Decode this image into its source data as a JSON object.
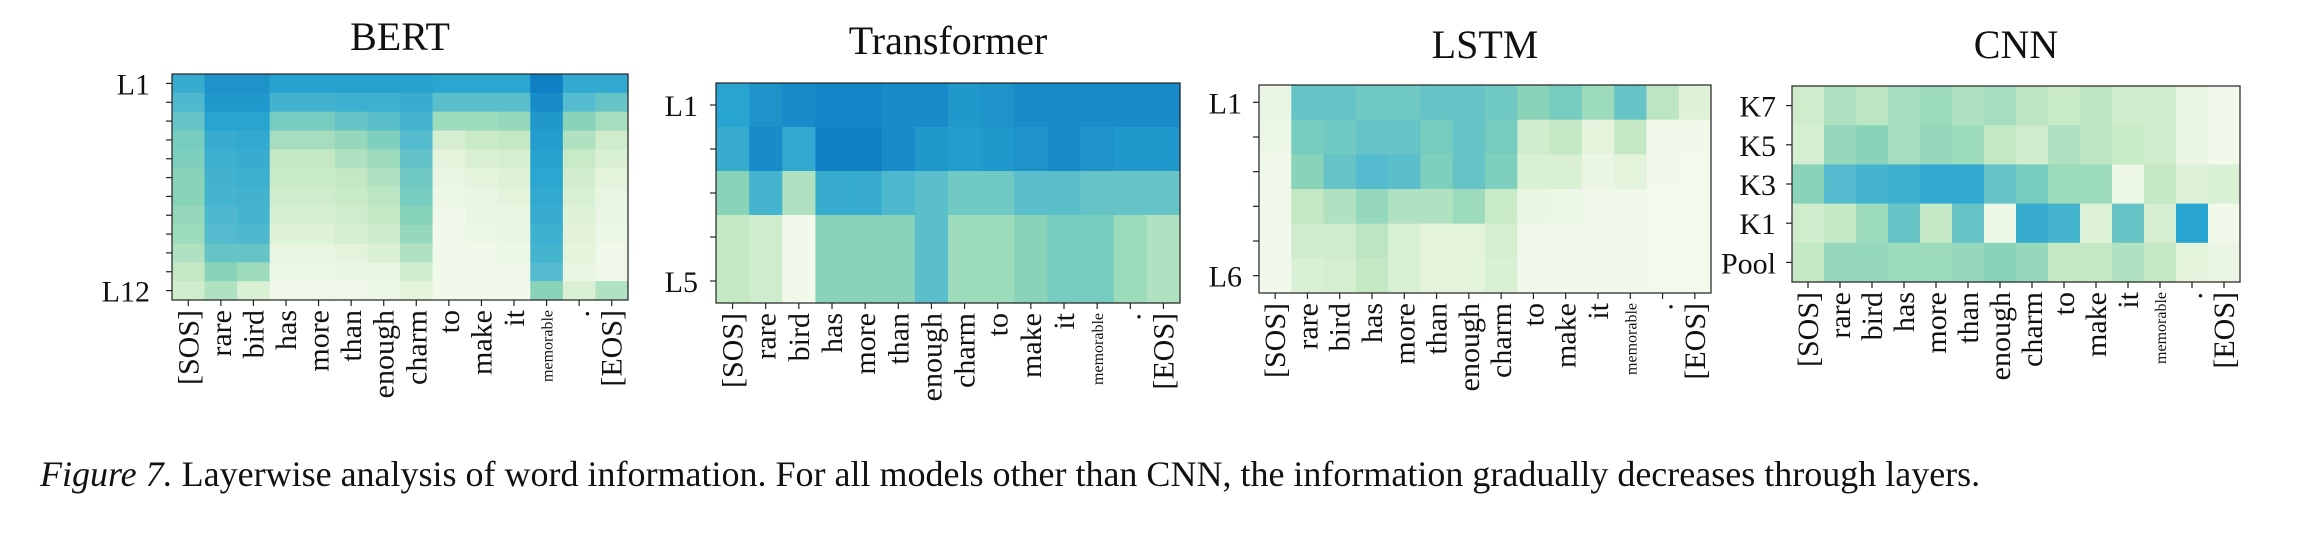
{
  "chart_data": [
    {
      "type": "heatmap",
      "title": "BERT",
      "x_tokens": [
        "[SOS]",
        "rare",
        "bird",
        "has",
        "more",
        "than",
        "enough",
        "charm",
        "to",
        "make",
        "it",
        "memorable",
        ".",
        "[EOS]"
      ],
      "row_labels": [
        "L1",
        "",
        "",
        "",
        "",
        "",
        "",
        "",
        "",
        "",
        "",
        "L12"
      ],
      "value_range": [
        0,
        1
      ],
      "values": [
        [
          0.7,
          0.82,
          0.82,
          0.76,
          0.76,
          0.76,
          0.76,
          0.76,
          0.74,
          0.74,
          0.74,
          0.9,
          0.72,
          0.72
        ],
        [
          0.62,
          0.8,
          0.8,
          0.66,
          0.66,
          0.68,
          0.68,
          0.7,
          0.58,
          0.58,
          0.58,
          0.85,
          0.6,
          0.55
        ],
        [
          0.55,
          0.75,
          0.75,
          0.5,
          0.5,
          0.55,
          0.58,
          0.65,
          0.4,
          0.4,
          0.42,
          0.8,
          0.45,
          0.38
        ],
        [
          0.5,
          0.7,
          0.72,
          0.38,
          0.38,
          0.42,
          0.48,
          0.6,
          0.22,
          0.28,
          0.3,
          0.78,
          0.35,
          0.25
        ],
        [
          0.48,
          0.68,
          0.7,
          0.3,
          0.3,
          0.35,
          0.4,
          0.56,
          0.15,
          0.2,
          0.22,
          0.76,
          0.28,
          0.2
        ],
        [
          0.45,
          0.66,
          0.68,
          0.28,
          0.28,
          0.3,
          0.35,
          0.52,
          0.1,
          0.15,
          0.18,
          0.74,
          0.24,
          0.15
        ],
        [
          0.45,
          0.65,
          0.66,
          0.25,
          0.25,
          0.28,
          0.32,
          0.5,
          0.08,
          0.12,
          0.15,
          0.72,
          0.2,
          0.12
        ],
        [
          0.42,
          0.62,
          0.65,
          0.22,
          0.22,
          0.25,
          0.3,
          0.46,
          0.06,
          0.1,
          0.12,
          0.7,
          0.18,
          0.1
        ],
        [
          0.4,
          0.6,
          0.62,
          0.18,
          0.18,
          0.22,
          0.26,
          0.42,
          0.05,
          0.08,
          0.1,
          0.68,
          0.16,
          0.08
        ],
        [
          0.35,
          0.55,
          0.55,
          0.12,
          0.12,
          0.15,
          0.2,
          0.35,
          0.04,
          0.06,
          0.08,
          0.65,
          0.14,
          0.06
        ],
        [
          0.3,
          0.45,
          0.4,
          0.08,
          0.08,
          0.1,
          0.12,
          0.25,
          0.04,
          0.05,
          0.06,
          0.6,
          0.12,
          0.06
        ],
        [
          0.25,
          0.35,
          0.2,
          0.06,
          0.06,
          0.06,
          0.08,
          0.15,
          0.04,
          0.04,
          0.05,
          0.45,
          0.2,
          0.35
        ]
      ]
    },
    {
      "type": "heatmap",
      "title": "Transformer",
      "x_tokens": [
        "[SOS]",
        "rare",
        "bird",
        "has",
        "more",
        "than",
        "enough",
        "charm",
        "to",
        "make",
        "it",
        "memorable",
        ".",
        "[EOS]"
      ],
      "row_labels": [
        "L1",
        "",
        "",
        "",
        "L5"
      ],
      "value_range": [
        0,
        1
      ],
      "values": [
        [
          0.75,
          0.82,
          0.85,
          0.88,
          0.88,
          0.85,
          0.85,
          0.8,
          0.82,
          0.85,
          0.85,
          0.85,
          0.85,
          0.85
        ],
        [
          0.7,
          0.85,
          0.72,
          0.9,
          0.9,
          0.85,
          0.8,
          0.78,
          0.8,
          0.82,
          0.85,
          0.82,
          0.8,
          0.8
        ],
        [
          0.45,
          0.65,
          0.35,
          0.7,
          0.7,
          0.62,
          0.58,
          0.52,
          0.52,
          0.58,
          0.58,
          0.55,
          0.55,
          0.55
        ],
        [
          0.3,
          0.25,
          0.05,
          0.45,
          0.45,
          0.45,
          0.58,
          0.4,
          0.4,
          0.45,
          0.5,
          0.5,
          0.4,
          0.35
        ],
        [
          0.3,
          0.25,
          0.05,
          0.45,
          0.45,
          0.45,
          0.58,
          0.4,
          0.4,
          0.45,
          0.5,
          0.5,
          0.4,
          0.35
        ]
      ]
    },
    {
      "type": "heatmap",
      "title": "LSTM",
      "x_tokens": [
        "[SOS]",
        "rare",
        "bird",
        "has",
        "more",
        "than",
        "enough",
        "charm",
        "to",
        "make",
        "it",
        "memorable",
        ".",
        "[EOS]"
      ],
      "row_labels": [
        "L1",
        "",
        "",
        "",
        "",
        "L6"
      ],
      "value_range": [
        0,
        1
      ],
      "values": [
        [
          0.1,
          0.55,
          0.55,
          0.52,
          0.52,
          0.55,
          0.55,
          0.52,
          0.45,
          0.5,
          0.4,
          0.55,
          0.32,
          0.18
        ],
        [
          0.08,
          0.5,
          0.52,
          0.55,
          0.55,
          0.5,
          0.55,
          0.5,
          0.25,
          0.3,
          0.15,
          0.3,
          0.05,
          0.04
        ],
        [
          0.06,
          0.45,
          0.55,
          0.6,
          0.58,
          0.48,
          0.55,
          0.48,
          0.2,
          0.2,
          0.1,
          0.15,
          0.04,
          0.03
        ],
        [
          0.05,
          0.3,
          0.35,
          0.42,
          0.35,
          0.35,
          0.4,
          0.28,
          0.1,
          0.08,
          0.06,
          0.06,
          0.03,
          0.03
        ],
        [
          0.05,
          0.25,
          0.25,
          0.32,
          0.2,
          0.15,
          0.15,
          0.22,
          0.05,
          0.04,
          0.04,
          0.04,
          0.03,
          0.03
        ],
        [
          0.05,
          0.2,
          0.22,
          0.3,
          0.2,
          0.15,
          0.15,
          0.2,
          0.05,
          0.04,
          0.04,
          0.04,
          0.03,
          0.03
        ]
      ]
    },
    {
      "type": "heatmap",
      "title": "CNN",
      "x_tokens": [
        "[SOS]",
        "rare",
        "bird",
        "has",
        "more",
        "than",
        "enough",
        "charm",
        "to",
        "make",
        "it",
        "memorable",
        ".",
        "[EOS]"
      ],
      "row_labels": [
        "K7",
        "K5",
        "K3",
        "K1",
        "Pool"
      ],
      "value_range": [
        0,
        1
      ],
      "values": [
        [
          0.25,
          0.35,
          0.32,
          0.38,
          0.4,
          0.35,
          0.38,
          0.32,
          0.28,
          0.32,
          0.25,
          0.25,
          0.12,
          0.05
        ],
        [
          0.22,
          0.42,
          0.45,
          0.38,
          0.42,
          0.4,
          0.3,
          0.25,
          0.35,
          0.32,
          0.28,
          0.25,
          0.1,
          0.05
        ],
        [
          0.45,
          0.6,
          0.65,
          0.68,
          0.72,
          0.72,
          0.55,
          0.5,
          0.4,
          0.4,
          0.08,
          0.3,
          0.18,
          0.2
        ],
        [
          0.25,
          0.3,
          0.4,
          0.55,
          0.3,
          0.55,
          0.08,
          0.7,
          0.65,
          0.18,
          0.55,
          0.22,
          0.75,
          0.05
        ],
        [
          0.3,
          0.42,
          0.42,
          0.4,
          0.4,
          0.42,
          0.45,
          0.42,
          0.3,
          0.3,
          0.35,
          0.3,
          0.15,
          0.1
        ]
      ]
    }
  ],
  "caption": {
    "figure_label": "Figure 7.",
    "text": "Layerwise analysis of word information. For all models other than CNN, the information gradually decreases through layers."
  }
}
